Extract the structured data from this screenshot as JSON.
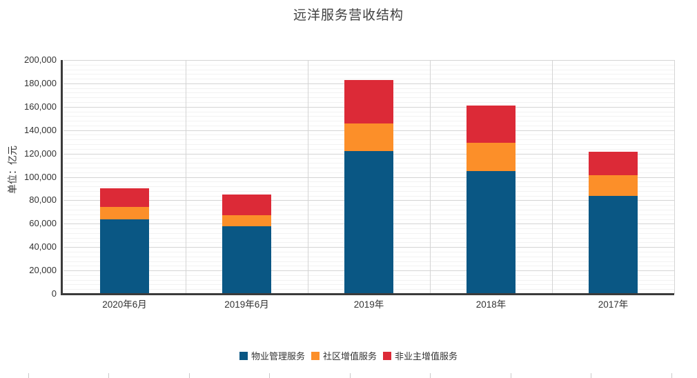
{
  "page": {
    "background": "#ffffff"
  },
  "chart_data": {
    "type": "bar",
    "stacked": true,
    "title": "远洋服务营收结构",
    "ylabel": "单位：亿元",
    "xlabel": "",
    "categories": [
      "2020年6月",
      "2019年6月",
      "2019年",
      "2018年",
      "2017年"
    ],
    "series": [
      {
        "name": "物业管理服务",
        "color": "#0A5784",
        "values": [
          64000,
          58000,
          122000,
          105000,
          83500
        ]
      },
      {
        "name": "社区增值服务",
        "color": "#FC8F29",
        "values": [
          10500,
          9000,
          23500,
          24000,
          18000
        ]
      },
      {
        "name": "非业主增值服务",
        "color": "#DC2A37",
        "values": [
          16000,
          18000,
          37500,
          32000,
          20000
        ]
      }
    ],
    "totals": [
      90500,
      85000,
      183000,
      161000,
      121500
    ],
    "ylim": [
      0,
      200000
    ],
    "y_tick_step": 20000,
    "y_minor_step": 4000,
    "y_tick_labels": [
      "0",
      "20,000",
      "40,000",
      "60,000",
      "80,000",
      "100,000",
      "120,000",
      "140,000",
      "160,000",
      "180,000",
      "200,000"
    ],
    "grid": true,
    "legend_position": "bottom",
    "colors": {
      "major_grid": "#d4d4d4",
      "minor_grid": "#f2f2f2",
      "axis": "#3b3b3b",
      "title_text": "#404040",
      "tick_text": "#333333"
    }
  }
}
